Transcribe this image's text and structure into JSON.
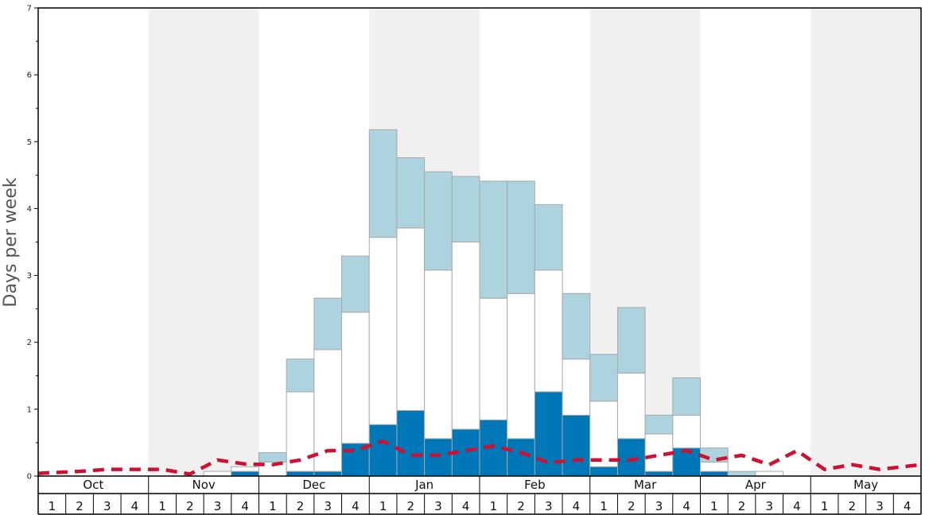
{
  "chart_data": {
    "type": "bar",
    "ylabel": "Days per week",
    "ylim": [
      0,
      7
    ],
    "yticks": [
      "0",
      "1",
      "2",
      "3",
      "4",
      "5",
      "6",
      "7"
    ],
    "months": [
      "Oct",
      "Nov",
      "Dec",
      "Jan",
      "Feb",
      "Mar",
      "Apr",
      "May"
    ],
    "weeks": [
      "1",
      "2",
      "3",
      "4"
    ],
    "colors": {
      "lower": "#0077b6",
      "middle": "#ffffff",
      "upper": "#add3df",
      "line": "#cc1133",
      "band": "#f0f0f0",
      "bar_edge": "#a8a8a8"
    },
    "series": [
      {
        "values": [
          0,
          0,
          0,
          0,
          0,
          0,
          0,
          0.07,
          0,
          0.07,
          0.07,
          0.49,
          0.77,
          0.98,
          0.56,
          0.7,
          0.84,
          0.56,
          1.26,
          0.91,
          0.14,
          0.56,
          0.07,
          0.42,
          0.07,
          0,
          0,
          0,
          0,
          0,
          0,
          0
        ]
      },
      {
        "values": [
          0,
          0,
          0,
          0,
          0,
          0,
          0.07,
          0.07,
          0.21,
          1.19,
          1.82,
          1.96,
          2.8,
          2.73,
          2.52,
          2.8,
          1.82,
          2.17,
          1.82,
          0.84,
          0.98,
          0.98,
          0.56,
          0.49,
          0.14,
          0,
          0.07,
          0,
          0,
          0,
          0,
          0
        ]
      },
      {
        "values": [
          0,
          0,
          0,
          0,
          0,
          0,
          0,
          0,
          0.14,
          0.49,
          0.77,
          0.84,
          1.61,
          1.05,
          1.47,
          0.98,
          1.75,
          1.68,
          0.98,
          0.98,
          0.7,
          0.98,
          0.28,
          0.56,
          0.21,
          0.07,
          0,
          0,
          0,
          0,
          0,
          0
        ]
      },
      {
        "type": "line",
        "values": [
          0.04,
          0.07,
          0.1,
          0.1,
          0.1,
          0.03,
          0.24,
          0.18,
          0.17,
          0.24,
          0.38,
          0.38,
          0.52,
          0.31,
          0.31,
          0.38,
          0.45,
          0.35,
          0.2,
          0.24,
          0.24,
          0.24,
          0.31,
          0.38,
          0.24,
          0.31,
          0.17,
          0.38,
          0.1,
          0.17,
          0.1,
          0.17
        ]
      }
    ],
    "grid": false
  }
}
